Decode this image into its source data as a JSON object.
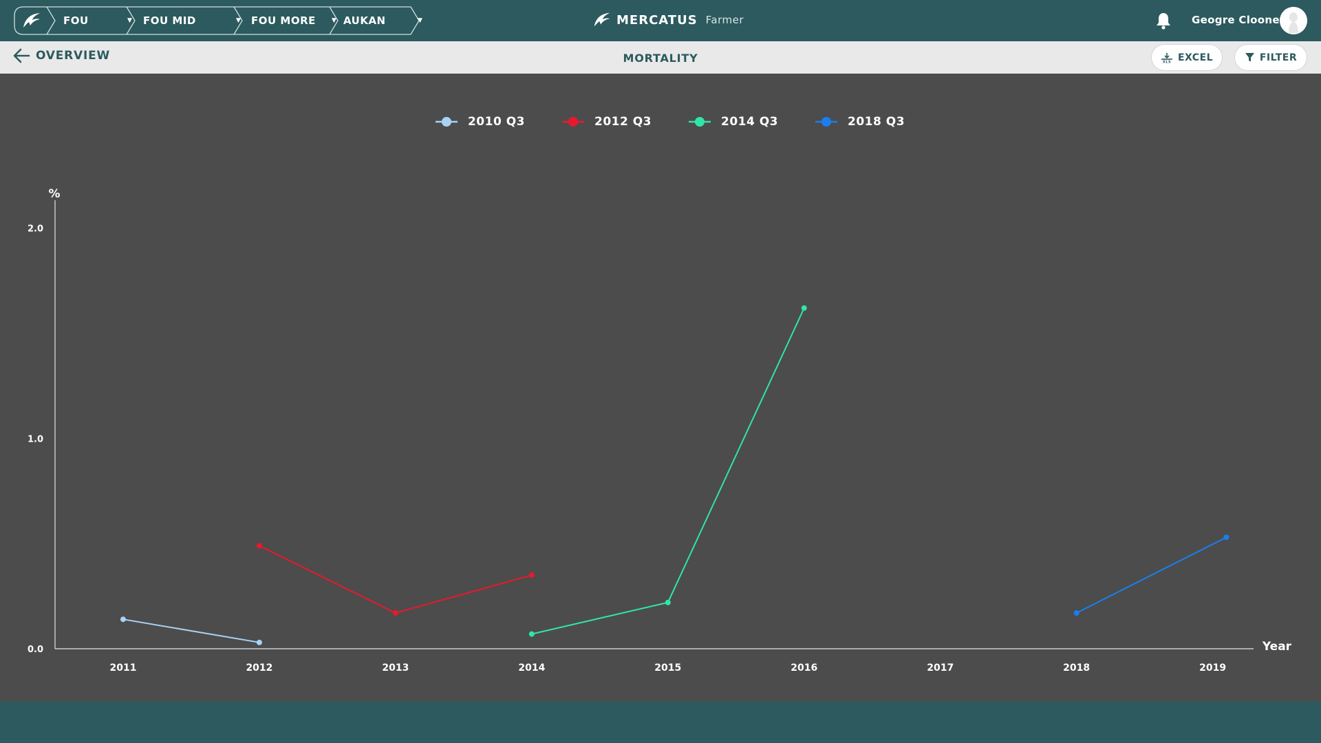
{
  "breadcrumbs": [
    {
      "label": "FOU"
    },
    {
      "label": "FOU MID"
    },
    {
      "label": "FOU MORE"
    },
    {
      "label": "AUKAN"
    }
  ],
  "brand": {
    "name": "MERCATUS",
    "sub": "Farmer"
  },
  "user": {
    "name": "Geogre Clooney"
  },
  "subheader": {
    "back_label": "OVERVIEW",
    "title": "MORTALITY",
    "excel_label": "EXCEL",
    "filter_label": "FILTER"
  },
  "colors": {
    "topbar": "#2c5a5e",
    "chart_bg": "#4c4c4c",
    "subbar": "#e9e9e9"
  },
  "chart_data": {
    "type": "line",
    "title": "",
    "ylabel": "%",
    "xlabel": "Year",
    "ylim": [
      0,
      2.1
    ],
    "xlim": [
      2010.5,
      2019.3
    ],
    "yticks": [
      {
        "value": 0,
        "label": "0.0"
      },
      {
        "value": 1,
        "label": "1.0"
      },
      {
        "value": 2,
        "label": "2.0"
      }
    ],
    "xticks": [
      "2011",
      "2012",
      "2013",
      "2014",
      "2015",
      "2016",
      "2017",
      "2018",
      "2019"
    ],
    "legend_position": "top-center",
    "series": [
      {
        "name": "2010 Q3",
        "color": "#a9d3f5",
        "points": [
          [
            2011,
            0.14
          ],
          [
            2012,
            0.03
          ]
        ]
      },
      {
        "name": "2012 Q3",
        "color": "#e8192c",
        "points": [
          [
            2012,
            0.49
          ],
          [
            2013,
            0.17
          ],
          [
            2014,
            0.35
          ]
        ]
      },
      {
        "name": "2014 Q3",
        "color": "#2ee6a8",
        "points": [
          [
            2014,
            0.07
          ],
          [
            2015,
            0.22
          ],
          [
            2016,
            1.62
          ]
        ]
      },
      {
        "name": "2018 Q3",
        "color": "#1a7ef0",
        "points": [
          [
            2018,
            0.17
          ],
          [
            2019.1,
            0.53
          ]
        ]
      }
    ]
  }
}
